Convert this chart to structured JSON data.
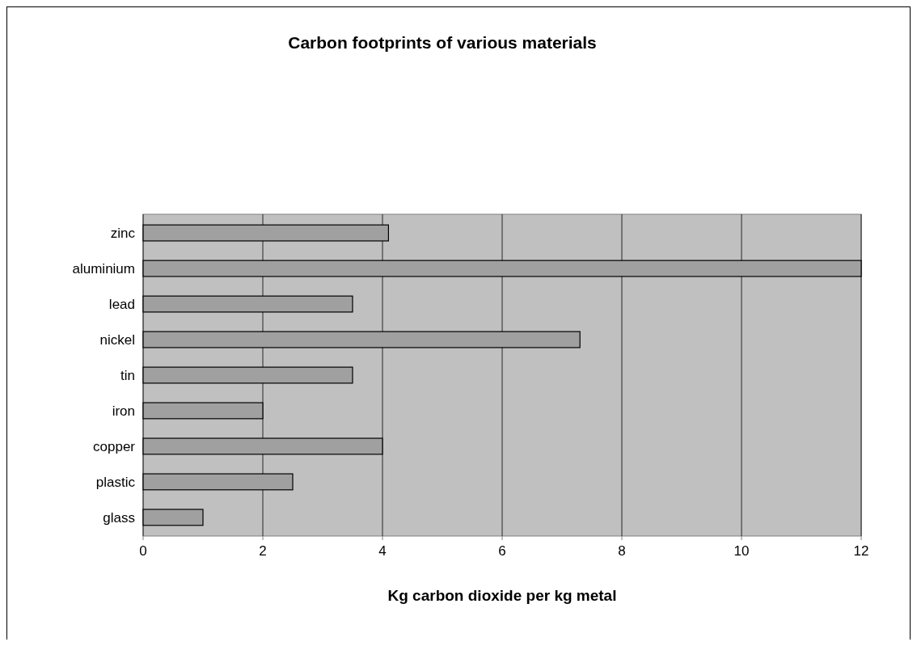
{
  "chart_data": {
    "type": "bar",
    "orientation": "horizontal",
    "title": "Carbon footprints of various materials",
    "xlabel": "Kg carbon dioxide per kg metal",
    "categories": [
      "zinc",
      "aluminium",
      "lead",
      "nickel",
      "tin",
      "iron",
      "copper",
      "plastic",
      "glass"
    ],
    "values": [
      4.1,
      12,
      3.5,
      7.3,
      3.5,
      2,
      4,
      2.5,
      1
    ],
    "color": "#a0a0a0",
    "xlim": [
      0,
      12
    ],
    "xticks": [
      0,
      2,
      4,
      6,
      8,
      10,
      12
    ],
    "grid": "x"
  }
}
